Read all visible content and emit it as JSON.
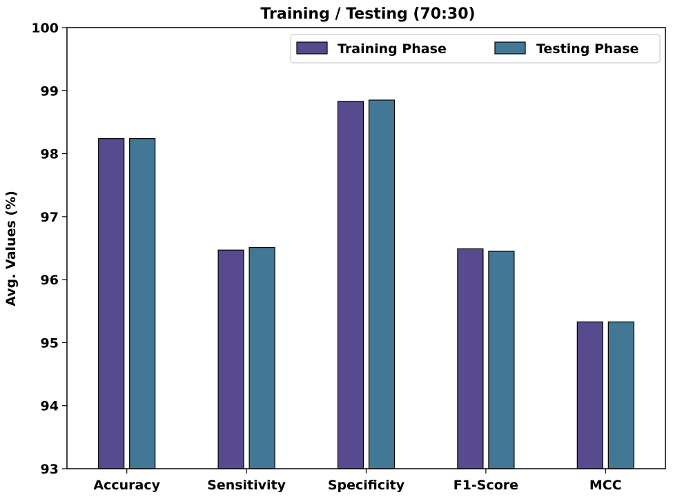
{
  "chart_data": {
    "type": "bar",
    "title": "Training / Testing (70:30)",
    "xlabel": "",
    "ylabel": "Avg. Values (%)",
    "ylim": [
      93,
      100
    ],
    "yticks": [
      "93",
      "94",
      "95",
      "96",
      "97",
      "98",
      "99",
      "100"
    ],
    "grid": false,
    "legend_position": "top-right",
    "categories": [
      "Accuracy",
      "Sensitivity",
      "Specificity",
      "F1-Score",
      "MCC"
    ],
    "series": [
      {
        "name": "Training Phase",
        "color": "#574a8f",
        "values": [
          98.24,
          96.47,
          98.83,
          96.49,
          95.33
        ]
      },
      {
        "name": "Testing Phase",
        "color": "#427895",
        "values": [
          98.24,
          96.51,
          98.85,
          96.45,
          95.33
        ]
      }
    ]
  }
}
